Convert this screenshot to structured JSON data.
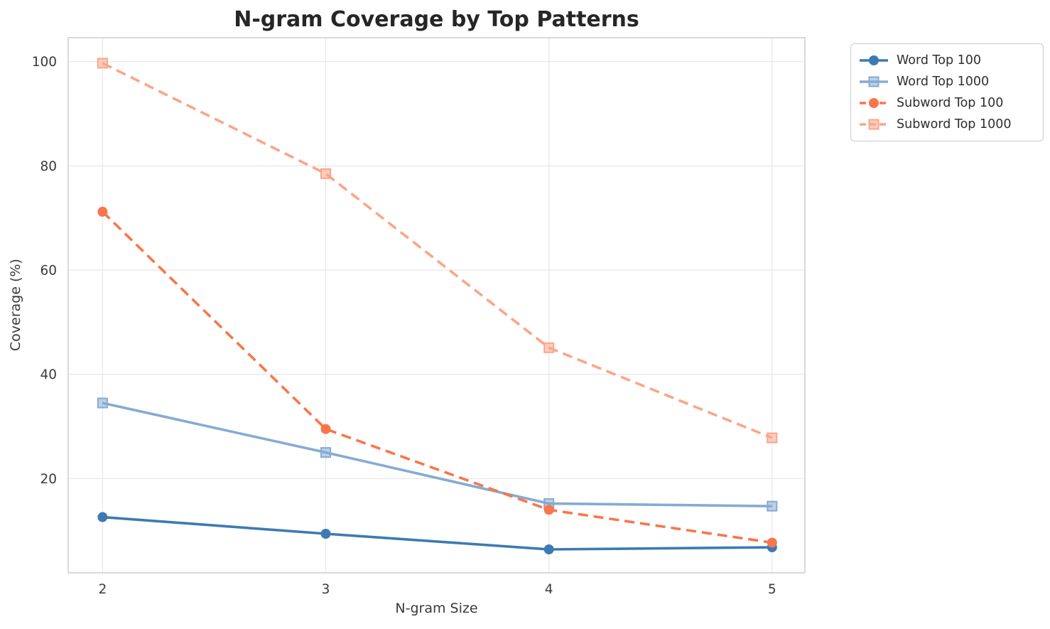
{
  "title": "N-gram Coverage by Top Patterns",
  "colors": {
    "word_top_100": "#3d7ab3",
    "word_top_1000": "#85abd2",
    "subword_top_100": "#f8764a",
    "subword_top_1000": "#fba589",
    "grid": "#e7e7e7",
    "spine": "#cbcbcb",
    "tick_text": "#3a3a3a",
    "title_text": "#262626"
  },
  "chart_data": {
    "type": "line",
    "title": "N-gram Coverage by Top Patterns",
    "xlabel": "N-gram Size",
    "ylabel": "Coverage (%)",
    "x": [
      2,
      3,
      4,
      5
    ],
    "xticks": [
      2,
      3,
      4,
      5
    ],
    "yticks": [
      20,
      40,
      60,
      80,
      100
    ],
    "xlim": [
      1.846,
      5.147
    ],
    "ylim": [
      1.9,
      104.6
    ],
    "grid": true,
    "legend_position": "outside upper right",
    "series": [
      {
        "name": "Word Top 100",
        "values": [
          12.6,
          9.4,
          6.4,
          6.8
        ],
        "color": "#3d7ab3",
        "style": "solid",
        "marker": "circle"
      },
      {
        "name": "Word Top 1000",
        "values": [
          34.5,
          25.0,
          15.2,
          14.7
        ],
        "color": "#85abd2",
        "style": "solid",
        "marker": "square"
      },
      {
        "name": "Subword Top 100",
        "values": [
          71.2,
          29.5,
          14.0,
          7.7
        ],
        "color": "#f8764a",
        "style": "dashed",
        "marker": "circle"
      },
      {
        "name": "Subword Top 1000",
        "values": [
          99.7,
          78.5,
          45.1,
          27.8
        ],
        "color": "#fba589",
        "style": "dashed",
        "marker": "square"
      }
    ]
  }
}
